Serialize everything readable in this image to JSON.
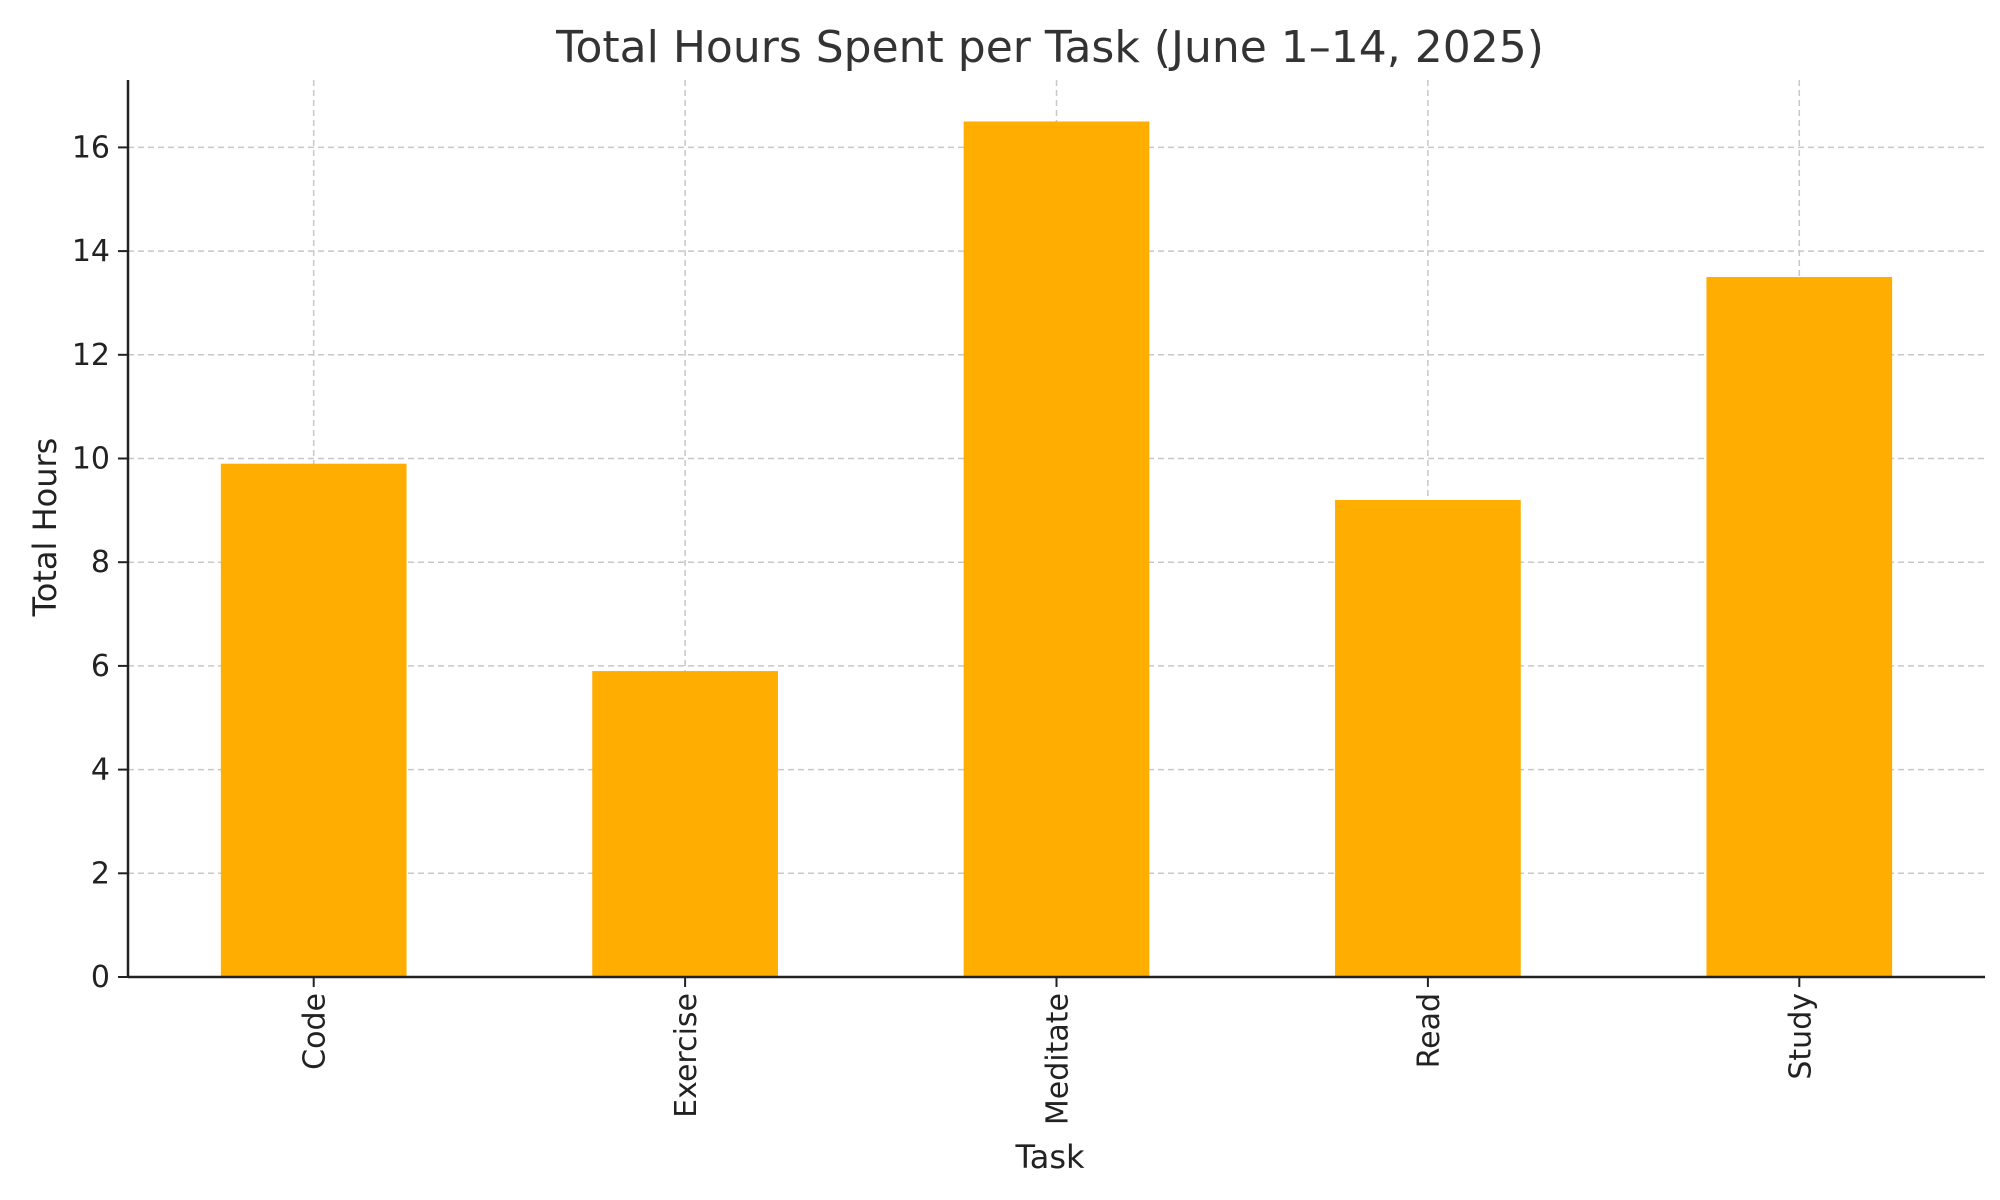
{
  "chart_data": {
    "type": "bar",
    "title": "Total Hours Spent per Task (June 1–14, 2025)",
    "xlabel": "Task",
    "ylabel": "Total Hours",
    "categories": [
      "Code",
      "Exercise",
      "Meditate",
      "Read",
      "Study"
    ],
    "values": [
      9.9,
      5.9,
      16.5,
      9.2,
      13.5
    ],
    "ylim": [
      0,
      17.3
    ],
    "yticks": [
      0,
      2,
      4,
      6,
      8,
      10,
      12,
      14,
      16
    ],
    "grid": true,
    "legend": "none",
    "bar_color": "#FFAE00"
  }
}
